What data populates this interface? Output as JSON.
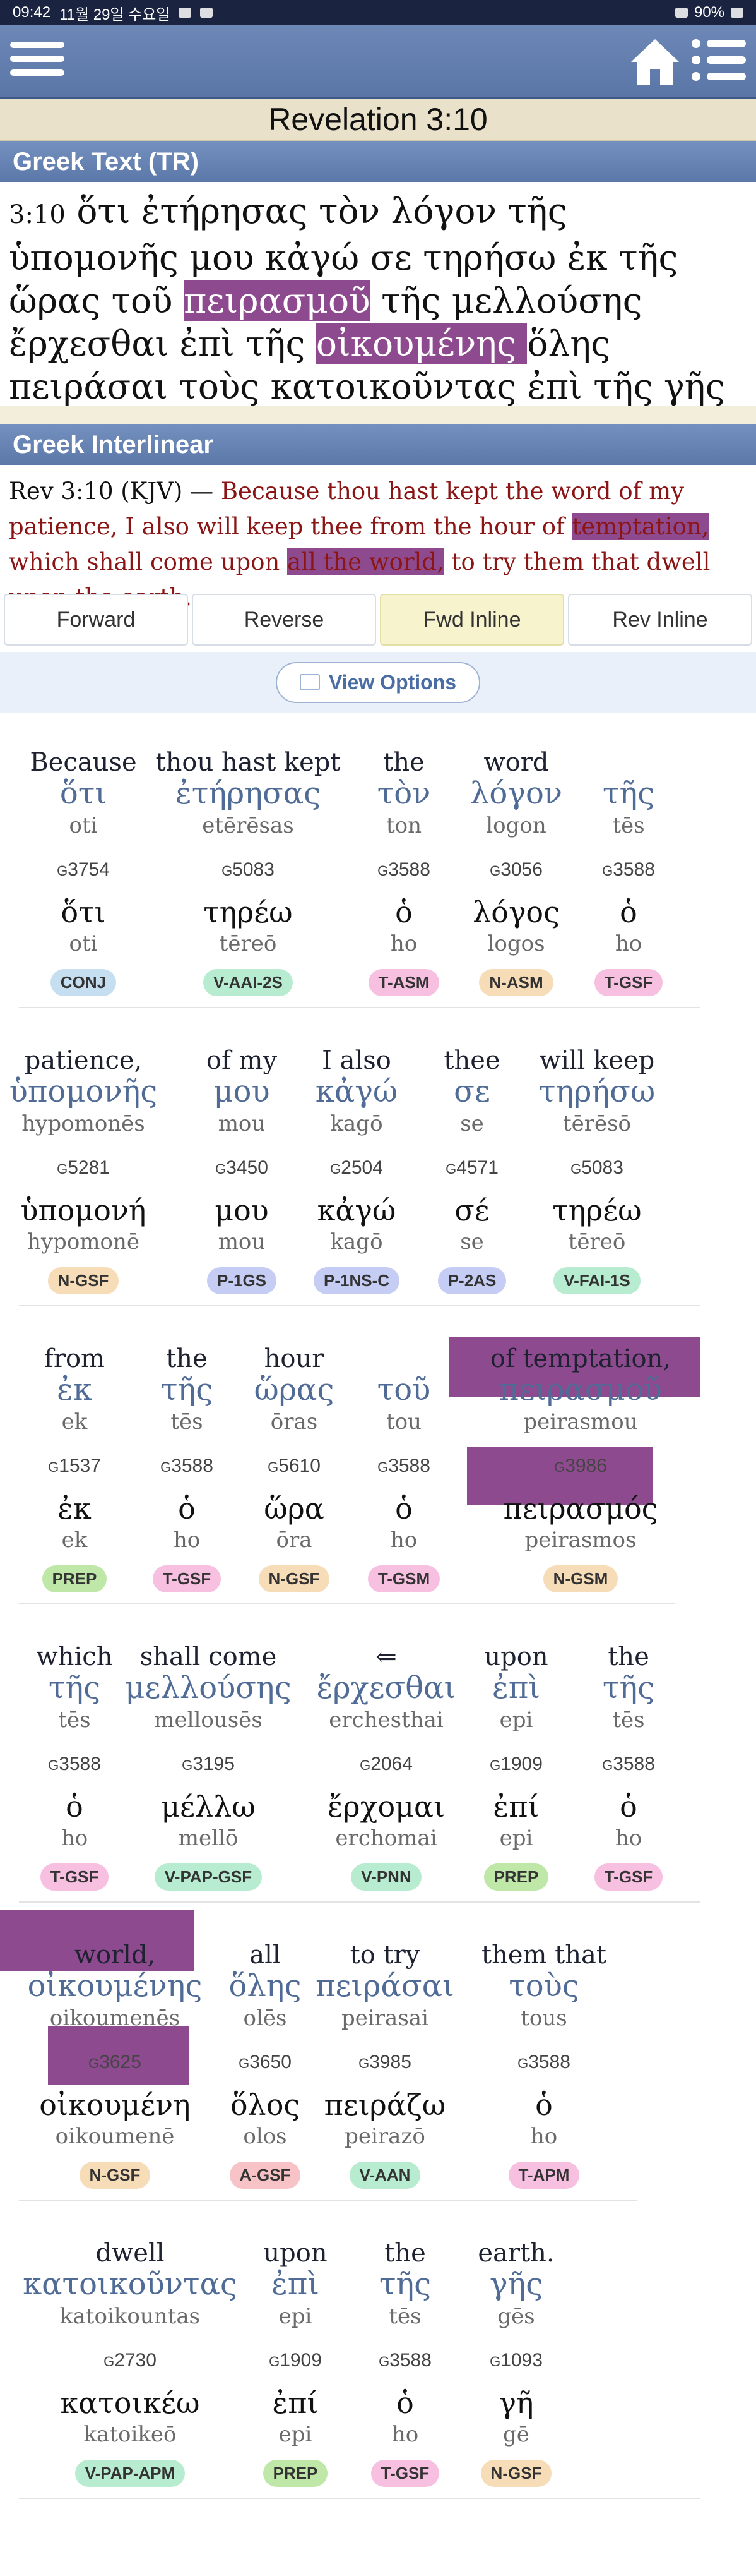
{
  "status": {
    "time": "09:42",
    "date": "11월 29일 수요일",
    "battery": "90%"
  },
  "reference": "Revelation 3:10",
  "greek_section_title": "Greek Text (TR)",
  "greek_text": {
    "verse": "3:10",
    "parts": [
      "ὅτι ἐτήρησας τὸν λόγον τῆς ὑπομονῆς μου κἀγώ σε τηρήσω ἐκ τῆς ὥρας τοῦ ",
      "πειρασμοῦ",
      " τῆς μελλούσης ἔρχεσθαι ἐπὶ τῆς ",
      "οἰκουμένης ",
      "ὅλης πειράσαι τοὺς κατοικοῦντας ἐπὶ τῆς γῆς"
    ]
  },
  "interlinear_section_title": "Greek Interlinear",
  "kjv": {
    "ref": "Rev 3:10 (KJV) — ",
    "parts": [
      "Because thou hast kept the word of my patience, I also will keep thee from the hour of ",
      "temptation,",
      " which shall come upon ",
      "all the world,",
      " to try them that dwell upon the earth."
    ]
  },
  "tabs": [
    {
      "label": "Forward",
      "active": false
    },
    {
      "label": "Reverse",
      "active": false
    },
    {
      "label": "Fwd Inline",
      "active": true
    },
    {
      "label": "Rev Inline",
      "active": false
    }
  ],
  "view_options_label": "View Options",
  "groups": [
    [
      {
        "eng": "Because",
        "grk": "ὅτι",
        "tr": "oti",
        "str": "3754",
        "lex": "ὅτι",
        "lextr": "oti",
        "pos": "CONJ",
        "cls": "b-conj"
      },
      {
        "eng": "thou hast kept",
        "grk": "ἐτήρησας",
        "tr": "etērēsas",
        "str": "5083",
        "lex": "τηρέω",
        "lextr": "tēreō",
        "pos": "V-AAI-2S",
        "cls": "b-verb"
      },
      {
        "eng": "the",
        "grk": "τὸν",
        "tr": "ton",
        "str": "3588",
        "lex": "ὁ",
        "lextr": "ho",
        "pos": "T-ASM",
        "cls": "b-art"
      },
      {
        "eng": "word",
        "grk": "λόγον",
        "tr": "logon",
        "str": "3056",
        "lex": "λόγος",
        "lextr": "logos",
        "pos": "N-ASM",
        "cls": "b-noun"
      },
      {
        "eng": "",
        "grk": "τῆς",
        "tr": "tēs",
        "str": "3588",
        "lex": "ὁ",
        "lextr": "ho",
        "pos": "T-GSF",
        "cls": "b-art"
      }
    ],
    [
      {
        "eng": "patience,",
        "grk": "ὑπομονῆς",
        "tr": "hypomonēs",
        "str": "5281",
        "lex": "ὑπομονή",
        "lextr": "hypomonē",
        "pos": "N-GSF",
        "cls": "b-noun"
      },
      {
        "eng": "of my",
        "grk": "μου",
        "tr": "mou",
        "str": "3450",
        "lex": "μου",
        "lextr": "mou",
        "pos": "P-1GS",
        "cls": "b-pron"
      },
      {
        "eng": "I also",
        "grk": "κἀγώ",
        "tr": "kagō",
        "str": "2504",
        "lex": "κἀγώ",
        "lextr": "kagō",
        "pos": "P-1NS-C",
        "cls": "b-pron"
      },
      {
        "eng": "thee",
        "grk": "σε",
        "tr": "se",
        "str": "4571",
        "lex": "σέ",
        "lextr": "se",
        "pos": "P-2AS",
        "cls": "b-pron"
      },
      {
        "eng": "will keep",
        "grk": "τηρήσω",
        "tr": "tērēsō",
        "str": "5083",
        "lex": "τηρέω",
        "lextr": "tēreō",
        "pos": "V-FAI-1S",
        "cls": "b-verb"
      }
    ],
    [
      {
        "eng": "from",
        "grk": "ἐκ",
        "tr": "ek",
        "str": "1537",
        "lex": "ἐκ",
        "lextr": "ek",
        "pos": "PREP",
        "cls": "b-prep"
      },
      {
        "eng": "the",
        "grk": "τῆς",
        "tr": "tēs",
        "str": "3588",
        "lex": "ὁ",
        "lextr": "ho",
        "pos": "T-GSF",
        "cls": "b-art"
      },
      {
        "eng": "hour",
        "grk": "ὥρας",
        "tr": "ōras",
        "str": "5610",
        "lex": "ὥρα",
        "lextr": "ōra",
        "pos": "N-GSF",
        "cls": "b-noun"
      },
      {
        "eng": "",
        "grk": "τοῦ",
        "tr": "tou",
        "str": "3588",
        "lex": "ὁ",
        "lextr": "ho",
        "pos": "T-GSM",
        "cls": "b-art"
      },
      {
        "eng": "of temptation,",
        "grk": "πειρασμοῦ",
        "tr": "peirasmou",
        "str": "3986",
        "lex": "πειρασμός",
        "lextr": "peirasmos",
        "pos": "N-GSM",
        "cls": "b-noun"
      }
    ],
    [
      {
        "eng": "which",
        "grk": "τῆς",
        "tr": "tēs",
        "str": "3588",
        "lex": "ὁ",
        "lextr": "ho",
        "pos": "T-GSF",
        "cls": "b-art"
      },
      {
        "eng": "shall come",
        "grk": "μελλούσης",
        "tr": "mellousēs",
        "str": "3195",
        "lex": "μέλλω",
        "lextr": "mellō",
        "pos": "V-PAP-GSF",
        "cls": "b-verb"
      },
      {
        "eng": "⇐",
        "grk": "ἔρχεσθαι",
        "tr": "erchesthai",
        "str": "2064",
        "lex": "ἔρχομαι",
        "lextr": "erchomai",
        "pos": "V-PNN",
        "cls": "b-verb"
      },
      {
        "eng": "upon",
        "grk": "ἐπὶ",
        "tr": "epi",
        "str": "1909",
        "lex": "ἐπί",
        "lextr": "epi",
        "pos": "PREP",
        "cls": "b-prep"
      },
      {
        "eng": "the",
        "grk": "τῆς",
        "tr": "tēs",
        "str": "3588",
        "lex": "ὁ",
        "lextr": "ho",
        "pos": "T-GSF",
        "cls": "b-art"
      }
    ],
    [
      {
        "eng": "world,",
        "grk": "οἰκουμένης",
        "tr": "oikoumenēs",
        "str": "3625",
        "lex": "οἰκουμένη",
        "lextr": "oikoumenē",
        "pos": "N-GSF",
        "cls": "b-noun"
      },
      {
        "eng": "all",
        "grk": "ὅλης",
        "tr": "olēs",
        "str": "3650",
        "lex": "ὅλος",
        "lextr": "olos",
        "pos": "A-GSF",
        "cls": "b-adj"
      },
      {
        "eng": "to try",
        "grk": "πειράσαι",
        "tr": "peirasai",
        "str": "3985",
        "lex": "πειράζω",
        "lextr": "peirazō",
        "pos": "V-AAN",
        "cls": "b-verb"
      },
      {
        "eng": "them that",
        "grk": "τοὺς",
        "tr": "tous",
        "str": "3588",
        "lex": "ὁ",
        "lextr": "ho",
        "pos": "T-APM",
        "cls": "b-art"
      }
    ],
    [
      {
        "eng": "dwell",
        "grk": "κατοικοῦντας",
        "tr": "katoikountas",
        "str": "2730",
        "lex": "κατοικέω",
        "lextr": "katoikeō",
        "pos": "V-PAP-APM",
        "cls": "b-verb"
      },
      {
        "eng": "upon",
        "grk": "ἐπὶ",
        "tr": "epi",
        "str": "1909",
        "lex": "ἐπί",
        "lextr": "epi",
        "pos": "PREP",
        "cls": "b-prep"
      },
      {
        "eng": "the",
        "grk": "τῆς",
        "tr": "tēs",
        "str": "3588",
        "lex": "ὁ",
        "lextr": "ho",
        "pos": "T-GSF",
        "cls": "b-art"
      },
      {
        "eng": "earth.",
        "grk": "γῆς",
        "tr": "gēs",
        "str": "1093",
        "lex": "γῆ",
        "lextr": "gē",
        "pos": "N-GSF",
        "cls": "b-noun"
      }
    ]
  ]
}
